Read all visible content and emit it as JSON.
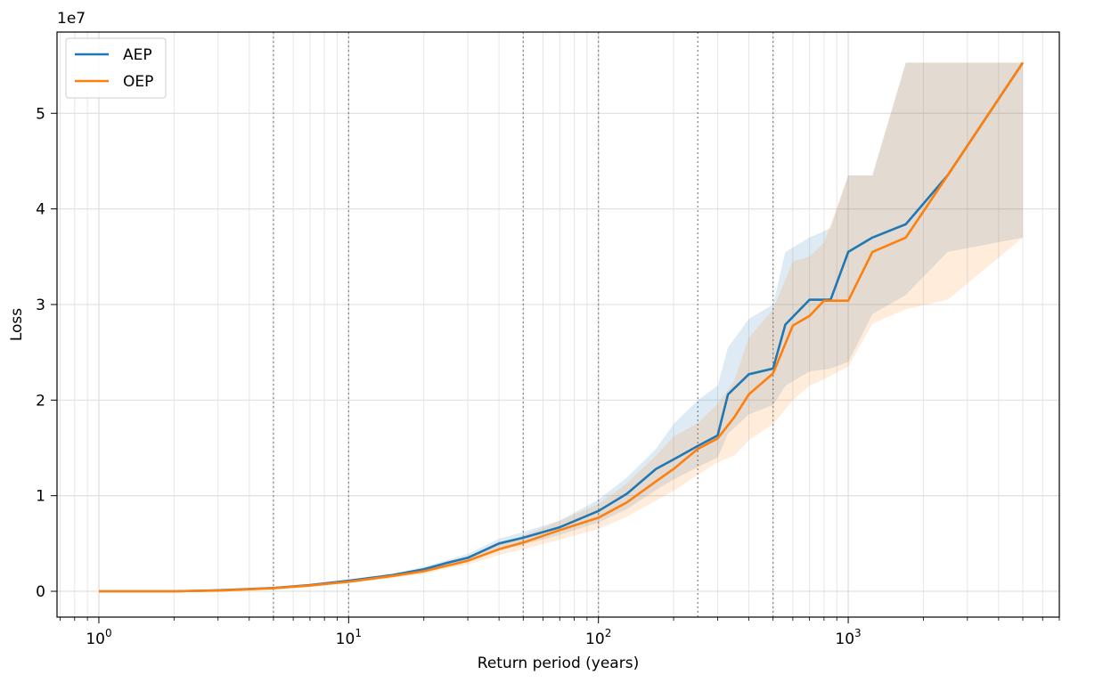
{
  "chart_data": {
    "type": "line",
    "title": "",
    "xlabel": "Return period (years)",
    "ylabel": "Loss",
    "y_scale_label": "1e7",
    "x_scale": "log",
    "xlim": [
      0.68,
      7000
    ],
    "ylim": [
      -2700000,
      58500000
    ],
    "grid": true,
    "legend_position": "top-left",
    "x_tick_labels": [
      {
        "base": "10",
        "exp": "0",
        "value": 1
      },
      {
        "base": "10",
        "exp": "1",
        "value": 10
      },
      {
        "base": "10",
        "exp": "2",
        "value": 100
      },
      {
        "base": "10",
        "exp": "3",
        "value": 1000
      }
    ],
    "y_ticks": [
      {
        "value": 0,
        "label": "0"
      },
      {
        "value": 10000000,
        "label": "1"
      },
      {
        "value": 20000000,
        "label": "2"
      },
      {
        "value": 30000000,
        "label": "3"
      },
      {
        "value": 40000000,
        "label": "4"
      },
      {
        "value": 50000000,
        "label": "5"
      }
    ],
    "reference_lines_x": [
      5,
      10,
      50,
      100,
      250,
      500
    ],
    "series": [
      {
        "name": "AEP",
        "color": "#1f77b4",
        "x": [
          1,
          2,
          3,
          5,
          7,
          10,
          15,
          20,
          25,
          30,
          40,
          50,
          70,
          100,
          130,
          170,
          200,
          250,
          300,
          330,
          400,
          500,
          560,
          700,
          850,
          1000,
          1250,
          1700,
          2500,
          5000
        ],
        "y": [
          0,
          0,
          100000,
          350000,
          650000,
          1100000,
          1700000,
          2300000,
          3000000,
          3500000,
          5000000,
          5600000,
          6700000,
          8400000,
          10200000,
          12800000,
          13800000,
          15200000,
          16300000,
          20600000,
          22700000,
          23300000,
          27900000,
          30500000,
          30500000,
          35500000,
          37000000,
          38400000,
          43500000,
          55300000
        ],
        "lower": [
          0,
          0,
          80000,
          300000,
          580000,
          1000000,
          1550000,
          2100000,
          2700000,
          3100000,
          4300000,
          4900000,
          5900000,
          7200000,
          8600000,
          10600000,
          11700000,
          13000000,
          14000000,
          16500000,
          18500000,
          19500000,
          21500000,
          23000000,
          23300000,
          24000000,
          29000000,
          31000000,
          35500000,
          37000000
        ],
        "upper": [
          0,
          0,
          120000,
          400000,
          720000,
          1200000,
          1850000,
          2550000,
          3300000,
          3900000,
          5500000,
          6200000,
          7400000,
          9600000,
          11900000,
          14900000,
          17500000,
          20000000,
          21500000,
          25500000,
          28500000,
          30000000,
          35500000,
          37000000,
          38000000,
          43500000,
          43500000,
          55300000,
          55300000,
          55300000
        ]
      },
      {
        "name": "OEP",
        "color": "#ff7f0e",
        "x": [
          1,
          2,
          3,
          5,
          7,
          10,
          15,
          20,
          25,
          30,
          40,
          50,
          70,
          100,
          130,
          170,
          200,
          250,
          300,
          350,
          400,
          500,
          600,
          700,
          800,
          1000,
          1250,
          1700,
          2500,
          5000
        ],
        "y": [
          0,
          0,
          80000,
          320000,
          600000,
          1000000,
          1600000,
          2100000,
          2700000,
          3200000,
          4400000,
          5100000,
          6400000,
          7700000,
          9300000,
          11500000,
          12800000,
          14900000,
          16000000,
          18200000,
          20600000,
          22800000,
          27800000,
          28800000,
          30400000,
          30400000,
          35500000,
          37000000,
          43500000,
          55300000
        ],
        "lower": [
          0,
          0,
          60000,
          270000,
          520000,
          900000,
          1400000,
          1850000,
          2400000,
          2800000,
          3800000,
          4400000,
          5400000,
          6500000,
          7800000,
          9500000,
          10500000,
          12200000,
          13500000,
          14200000,
          15800000,
          17500000,
          20000000,
          21500000,
          22200000,
          23500000,
          28000000,
          29500000,
          30500000,
          37000000
        ],
        "upper": [
          0,
          0,
          100000,
          380000,
          700000,
          1100000,
          1800000,
          2400000,
          3100000,
          3600000,
          5100000,
          5800000,
          7400000,
          9100000,
          11300000,
          14200000,
          16200000,
          17600000,
          19600000,
          22000000,
          26500000,
          29500000,
          34500000,
          35000000,
          36500000,
          43500000,
          43500000,
          55300000,
          55300000,
          55300000
        ]
      }
    ]
  }
}
